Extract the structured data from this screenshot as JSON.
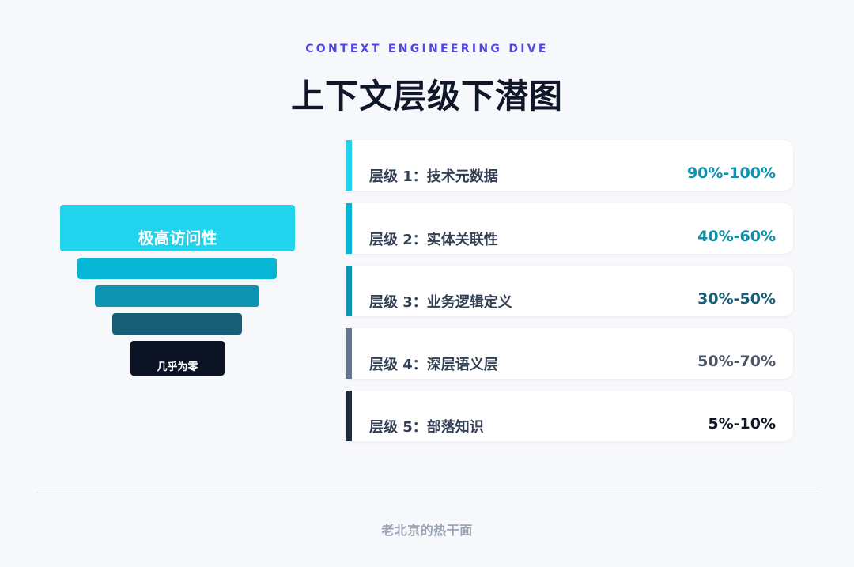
{
  "header": {
    "eyebrow": "CONTEXT ENGINEERING DIVE",
    "title": "上下文层级下潜图"
  },
  "funnel": {
    "top_label": "极高访问性",
    "bottom_label": "几乎为零",
    "colors": [
      "#22d3ee",
      "#06b6d4",
      "#0e93b3",
      "#155e75",
      "#0b1324"
    ]
  },
  "levels": [
    {
      "label": "层级 1：技术元数据",
      "value": "90%-100%",
      "accent": "#22d3ee"
    },
    {
      "label": "层级 2：实体关联性",
      "value": "40%-60%",
      "accent": "#06b6d4"
    },
    {
      "label": "层级 3：业务逻辑定义",
      "value": "30%-50%",
      "accent": "#0e93b3"
    },
    {
      "label": "层级 4：深层语义层",
      "value": "50%-70%",
      "accent": "#64748b"
    },
    {
      "label": "层级 5：部落知识",
      "value": "5%-10%",
      "accent": "#1e293b"
    }
  ],
  "footer": {
    "credit": "老北京的热干面"
  }
}
